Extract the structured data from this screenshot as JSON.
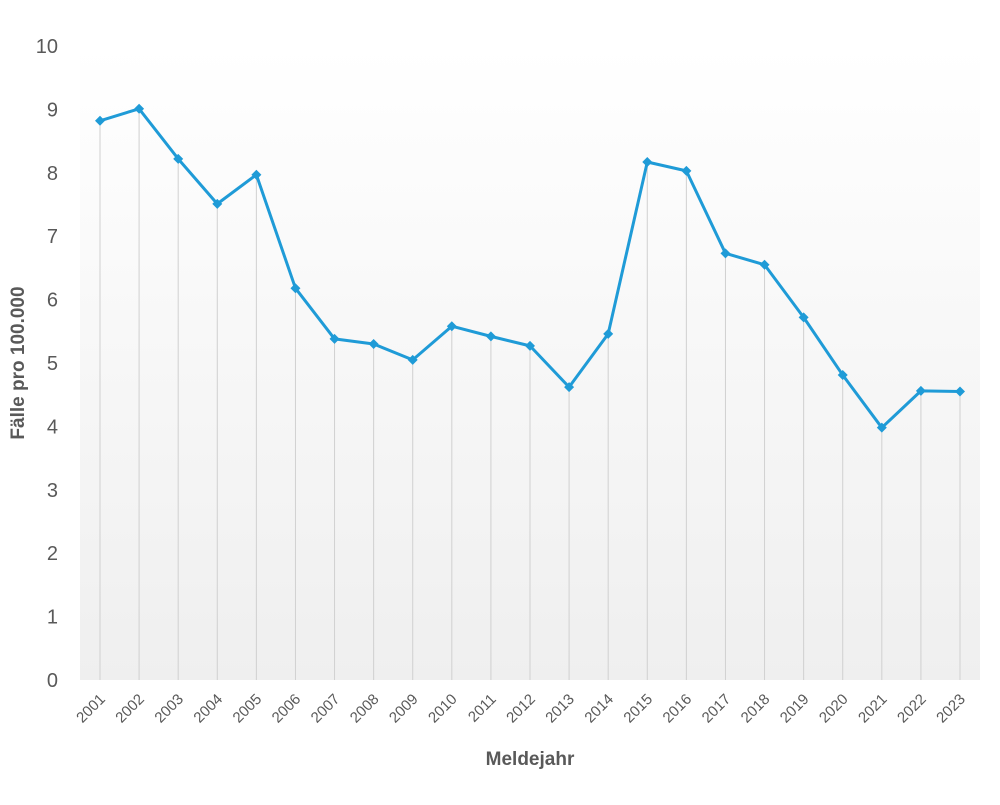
{
  "chart_data": {
    "type": "line",
    "title": "",
    "xlabel": "Meldejahr",
    "ylabel": "Fälle pro 100.000",
    "ylim": [
      0,
      10
    ],
    "yticks": [
      "0",
      "1",
      "2",
      "3",
      "4",
      "5",
      "6",
      "7",
      "8",
      "9",
      "10"
    ],
    "categories": [
      "2001",
      "2002",
      "2003",
      "2004",
      "2005",
      "2006",
      "2007",
      "2008",
      "2009",
      "2010",
      "2011",
      "2012",
      "2013",
      "2014",
      "2015",
      "2016",
      "2017",
      "2018",
      "2019",
      "2020",
      "2021",
      "2022",
      "2023"
    ],
    "values": [
      8.82,
      9.01,
      8.22,
      7.51,
      7.97,
      6.18,
      5.38,
      5.3,
      5.05,
      5.58,
      5.42,
      5.27,
      4.62,
      5.46,
      8.17,
      8.03,
      6.73,
      6.55,
      5.72,
      4.81,
      3.98,
      4.56,
      4.55
    ],
    "grid": false,
    "drop_lines": true,
    "marker": "diamond",
    "colors": {
      "line": "#1f9bd7",
      "drop_line": "#d0d0d0",
      "text": "#595959"
    }
  }
}
